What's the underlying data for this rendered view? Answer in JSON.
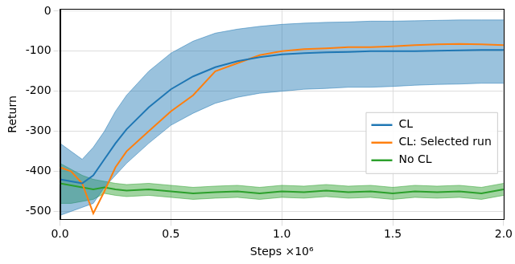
{
  "chart_data": {
    "type": "line",
    "x_label": "Steps ×10⁶",
    "y_label": "Return",
    "x": [
      0.0,
      0.05,
      0.1,
      0.15,
      0.2,
      0.25,
      0.3,
      0.4,
      0.5,
      0.6,
      0.7,
      0.8,
      0.9,
      1.0,
      1.1,
      1.2,
      1.3,
      1.4,
      1.5,
      1.6,
      1.7,
      1.8,
      1.9,
      2.0
    ],
    "series": [
      {
        "name": "CL",
        "color": "#1f77b4",
        "values": [
          -420,
          -425,
          -430,
          -410,
          -370,
          -330,
          -295,
          -240,
          -195,
          -163,
          -140,
          -125,
          -115,
          -108,
          -105,
          -103,
          -102,
          -100,
          -100,
          -100,
          -99,
          -98,
          -97,
          -97
        ],
        "upper": [
          -330,
          -350,
          -370,
          -340,
          -300,
          -250,
          -210,
          -150,
          -105,
          -75,
          -55,
          -45,
          -38,
          -33,
          -30,
          -28,
          -27,
          -25,
          -25,
          -24,
          -23,
          -22,
          -22,
          -22
        ],
        "lower": [
          -510,
          -500,
          -490,
          -480,
          -440,
          -410,
          -380,
          -330,
          -285,
          -255,
          -230,
          -215,
          -205,
          -200,
          -195,
          -193,
          -190,
          -190,
          -188,
          -185,
          -183,
          -182,
          -180,
          -180
        ]
      },
      {
        "name": "CL: Selected run",
        "color": "#ff7f0e",
        "values": [
          -390,
          -400,
          -430,
          -505,
          -450,
          -390,
          -350,
          -300,
          -250,
          -210,
          -150,
          -130,
          -110,
          -100,
          -95,
          -93,
          -90,
          -90,
          -88,
          -85,
          -83,
          -82,
          -83,
          -85
        ]
      },
      {
        "name": "No CL",
        "color": "#2ca02c",
        "values": [
          -430,
          -435,
          -440,
          -445,
          -440,
          -445,
          -448,
          -445,
          -450,
          -455,
          -452,
          -450,
          -455,
          -450,
          -452,
          -448,
          -452,
          -450,
          -455,
          -450,
          -452,
          -450,
          -455,
          -445
        ],
        "upper": [
          -380,
          -395,
          -410,
          -420,
          -425,
          -430,
          -433,
          -430,
          -435,
          -440,
          -437,
          -435,
          -440,
          -435,
          -437,
          -433,
          -437,
          -435,
          -440,
          -435,
          -437,
          -435,
          -440,
          -430
        ],
        "lower": [
          -480,
          -480,
          -475,
          -470,
          -455,
          -460,
          -463,
          -460,
          -465,
          -470,
          -467,
          -465,
          -470,
          -465,
          -467,
          -463,
          -467,
          -465,
          -470,
          -465,
          -467,
          -465,
          -470,
          -460
        ]
      }
    ],
    "xlim": [
      0.0,
      2.0
    ],
    "xticks": [
      {
        "value": 0.0,
        "label": "0.0"
      },
      {
        "value": 0.5,
        "label": "0.5"
      },
      {
        "value": 1.0,
        "label": "1.0"
      },
      {
        "value": 1.5,
        "label": "1.5"
      },
      {
        "value": 2.0,
        "label": "2.0"
      }
    ],
    "ylim": [
      -520,
      5
    ],
    "yticks": [
      -500,
      -400,
      -300,
      -200,
      -100,
      0
    ],
    "grid": true,
    "legend": "right"
  }
}
